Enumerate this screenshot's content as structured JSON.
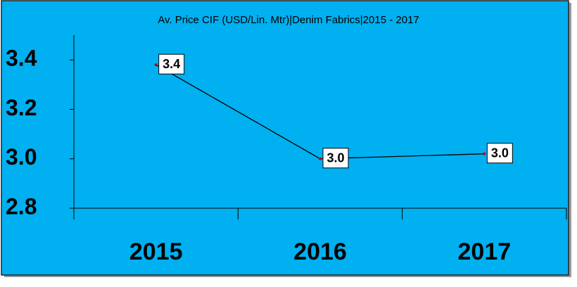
{
  "chart_data": {
    "type": "line",
    "title": "Av. Price CIF (USD/Lin. Mtr)|Denim Fabrics|2015 - 2017",
    "categories": [
      "2015",
      "2016",
      "2017"
    ],
    "values": [
      3.38,
      3.0,
      3.02
    ],
    "value_labels": [
      "3.4",
      "3.0",
      "3.0"
    ],
    "color": "#000000",
    "ylim": [
      2.8,
      3.5
    ],
    "yticks": [
      {
        "value": 2.8,
        "label": "2.8"
      },
      {
        "value": 3,
        "label": "3.0"
      },
      {
        "value": 3.2,
        "label": "3.2"
      },
      {
        "value": 3.4,
        "label": "3.4"
      }
    ],
    "grid": false
  }
}
